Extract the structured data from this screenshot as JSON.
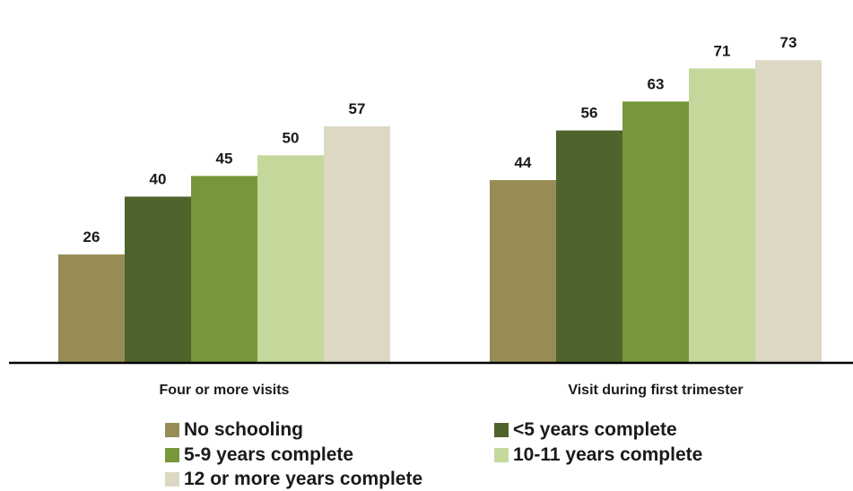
{
  "chart_data": {
    "type": "bar",
    "categories": [
      "Four or more visits",
      "Visit during first trimester"
    ],
    "series": [
      {
        "name": "No schooling",
        "values": [
          26,
          44
        ],
        "color": "#978c55"
      },
      {
        "name": "<5 years complete",
        "values": [
          40,
          56
        ],
        "color": "#4f632d"
      },
      {
        "name": "5-9 years complete",
        "values": [
          45,
          63
        ],
        "color": "#77973a"
      },
      {
        "name": "10-11 years complete",
        "values": [
          50,
          71
        ],
        "color": "#c4d89c"
      },
      {
        "name": "12 or more years complete",
        "values": [
          57,
          73
        ],
        "color": "#ddd8c4"
      }
    ],
    "ylim": [
      0,
      80
    ],
    "grid": false,
    "legend_position": "bottom",
    "data_labels": true,
    "title": "",
    "xlabel": "",
    "ylabel": ""
  }
}
